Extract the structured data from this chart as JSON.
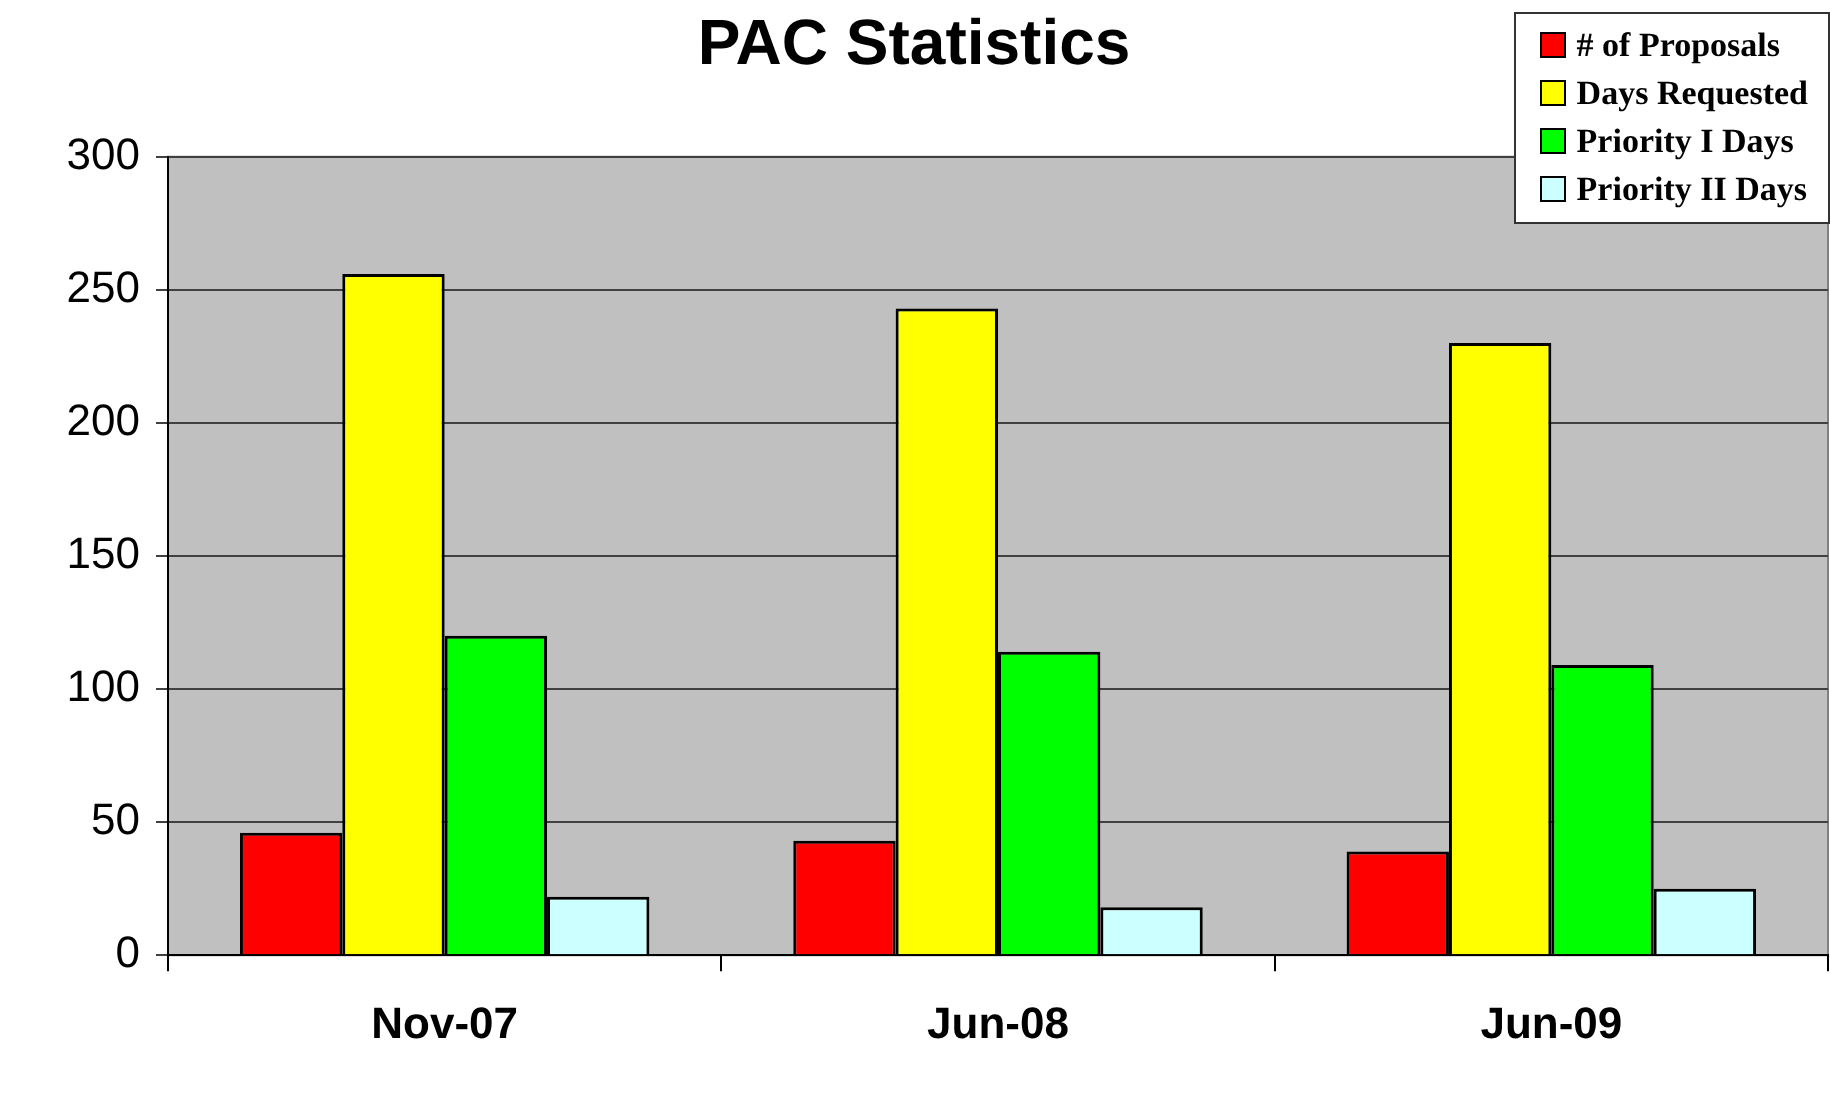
{
  "chart_data": {
    "type": "bar",
    "title": "PAC Statistics",
    "categories": [
      "Nov-07",
      "Jun-08",
      "Jun-09"
    ],
    "series": [
      {
        "name": "# of Proposals",
        "color": "#ff0000",
        "values": [
          46,
          43,
          39
        ]
      },
      {
        "name": "Days Requested",
        "color": "#ffff00",
        "values": [
          256,
          243,
          230
        ]
      },
      {
        "name": "Priority I Days",
        "color": "#00ff00",
        "values": [
          120,
          114,
          109
        ]
      },
      {
        "name": "Priority II Days",
        "color": "#ccffff",
        "values": [
          22,
          18,
          25
        ]
      }
    ],
    "ylim": [
      0,
      300
    ],
    "yticks": [
      0,
      50,
      100,
      150,
      200,
      250,
      300
    ],
    "grid": "y",
    "legend": "top right"
  }
}
